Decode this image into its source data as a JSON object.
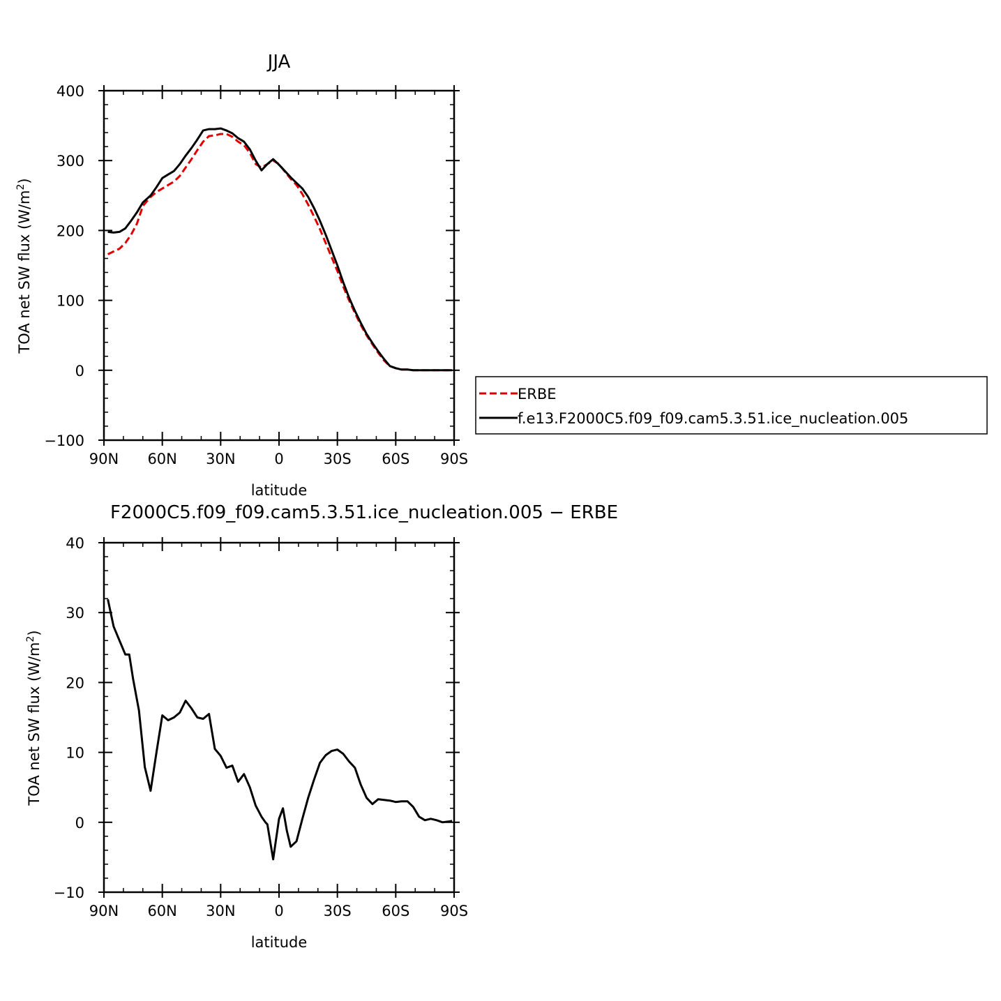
{
  "chart_data": [
    {
      "type": "line",
      "title": "JJA",
      "xlabel": "latitude",
      "ylabel_main": "TOA net SW flux (W/m",
      "ylabel_sup": "2",
      "ylabel_end": ")",
      "xlim": [
        90,
        -90
      ],
      "ylim": [
        -100,
        400
      ],
      "x_ticks": [
        {
          "value": 90,
          "label": "90N"
        },
        {
          "value": 60,
          "label": "60N"
        },
        {
          "value": 30,
          "label": "30N"
        },
        {
          "value": 0,
          "label": "0"
        },
        {
          "value": -30,
          "label": "30S"
        },
        {
          "value": -60,
          "label": "60S"
        },
        {
          "value": -90,
          "label": "90S"
        }
      ],
      "y_ticks": [
        {
          "value": -100,
          "label": "−100"
        },
        {
          "value": 0,
          "label": "0"
        },
        {
          "value": 100,
          "label": "100"
        },
        {
          "value": 200,
          "label": "200"
        },
        {
          "value": 300,
          "label": "300"
        },
        {
          "value": 400,
          "label": "400"
        }
      ],
      "legend": {
        "placement": "right",
        "entries": [
          "ERBE",
          "f.e13.F2000C5.f09_f09.cam5.3.51.ice_nucleation.005"
        ]
      },
      "series": [
        {
          "name": "ERBE",
          "color": "#e00000",
          "dash": "dashed",
          "x": [
            88,
            85,
            82,
            79,
            76,
            73,
            70,
            66,
            63,
            60,
            57,
            54,
            51,
            48,
            45,
            42,
            39,
            36,
            33,
            30,
            27,
            24,
            21,
            18,
            15,
            12,
            9,
            6,
            3,
            0,
            -3,
            -6,
            -9,
            -12,
            -15,
            -18,
            -21,
            -24,
            -27,
            -30,
            -33,
            -36,
            -39,
            -42,
            -45,
            -48,
            -51,
            -54,
            -57,
            -60,
            -63,
            -66,
            -69,
            -72,
            -75,
            -78,
            -81,
            -84,
            -87,
            -89
          ],
          "y": [
            166,
            170,
            174,
            182,
            194,
            210,
            235,
            248,
            255,
            260,
            265,
            270,
            278,
            290,
            302,
            315,
            327,
            335,
            336,
            338,
            338,
            334,
            327,
            322,
            311,
            295,
            290,
            295,
            300,
            295,
            284,
            274,
            265,
            252,
            237,
            220,
            202,
            182,
            162,
            142,
            120,
            100,
            82,
            65,
            50,
            37,
            25,
            14,
            6,
            3,
            1,
            1,
            0,
            0,
            0,
            0,
            0,
            0,
            0,
            0
          ]
        },
        {
          "name": "f.e13.F2000C5.f09_f09.cam5.3.51.ice_nucleation.005",
          "color": "#000000",
          "dash": "solid",
          "x": [
            88,
            85,
            82,
            79,
            76,
            73,
            70,
            66,
            63,
            60,
            57,
            54,
            51,
            48,
            45,
            42,
            39,
            36,
            33,
            30,
            27,
            24,
            21,
            18,
            15,
            12,
            9,
            6,
            3,
            0,
            -3,
            -6,
            -9,
            -12,
            -15,
            -18,
            -21,
            -24,
            -27,
            -30,
            -33,
            -36,
            -39,
            -42,
            -45,
            -48,
            -51,
            -54,
            -57,
            -60,
            -63,
            -66,
            -69,
            -72,
            -75,
            -78,
            -81,
            -84,
            -87,
            -89
          ],
          "y": [
            198,
            197,
            198,
            203,
            214,
            226,
            240,
            250,
            262,
            275,
            280,
            285,
            295,
            307,
            318,
            330,
            343,
            345,
            345,
            346,
            343,
            339,
            332,
            327,
            316,
            300,
            286,
            295,
            302,
            294,
            285,
            276,
            268,
            260,
            248,
            232,
            214,
            194,
            172,
            150,
            126,
            104,
            85,
            68,
            52,
            39,
            27,
            16,
            6,
            3,
            1,
            1,
            0,
            0,
            0,
            0,
            0,
            0,
            0,
            0
          ]
        }
      ]
    },
    {
      "type": "line",
      "title": "F2000C5.f09_f09.cam5.3.51.ice_nucleation.005 − ERBE",
      "xlabel": "latitude",
      "ylabel_main": "TOA net SW flux (W/m",
      "ylabel_sup": "2",
      "ylabel_end": ")",
      "xlim": [
        90,
        -90
      ],
      "ylim": [
        -10,
        40
      ],
      "x_ticks": [
        {
          "value": 90,
          "label": "90N"
        },
        {
          "value": 60,
          "label": "60N"
        },
        {
          "value": 30,
          "label": "30N"
        },
        {
          "value": 0,
          "label": "0"
        },
        {
          "value": -30,
          "label": "30S"
        },
        {
          "value": -60,
          "label": "60S"
        },
        {
          "value": -90,
          "label": "90S"
        }
      ],
      "y_ticks": [
        {
          "value": -10,
          "label": "−10"
        },
        {
          "value": 0,
          "label": "0"
        },
        {
          "value": 10,
          "label": "10"
        },
        {
          "value": 20,
          "label": "20"
        },
        {
          "value": 30,
          "label": "30"
        },
        {
          "value": 40,
          "label": "40"
        }
      ],
      "series": [
        {
          "color": "#000000",
          "dash": "solid",
          "x": [
            88,
            85,
            82,
            79,
            77,
            75,
            72,
            69,
            66,
            63,
            60,
            57,
            54,
            51,
            48,
            45,
            42,
            39,
            36,
            33,
            30,
            27,
            24,
            21,
            18,
            15,
            12,
            9,
            7,
            6,
            3,
            0,
            -2,
            -4,
            -6,
            -9,
            -12,
            -15,
            -18,
            -21,
            -24,
            -27,
            -30,
            -33,
            -36,
            -39,
            -42,
            -45,
            -48,
            -51,
            -54,
            -57,
            -60,
            -63,
            -66,
            -69,
            -72,
            -75,
            -78,
            -81,
            -84,
            -87,
            -89
          ],
          "y": [
            31.9,
            28.0,
            26.0,
            24.0,
            24.0,
            20.5,
            16.0,
            7.9,
            4.5,
            10.0,
            15.3,
            14.6,
            15.0,
            15.7,
            17.4,
            16.3,
            15.0,
            14.8,
            15.5,
            10.5,
            9.5,
            7.8,
            8.1,
            5.8,
            6.9,
            5.0,
            2.4,
            0.8,
            0.0,
            -0.3,
            -5.3,
            0.5,
            2.0,
            -1.2,
            -3.5,
            -2.7,
            0.5,
            3.5,
            6.1,
            8.5,
            9.6,
            10.2,
            10.4,
            9.8,
            8.7,
            7.8,
            5.4,
            3.5,
            2.6,
            3.3,
            3.2,
            3.1,
            2.9,
            3.0,
            3.0,
            2.2,
            0.8,
            0.3,
            0.5,
            0.3,
            0.0,
            0.1,
            0.2
          ]
        }
      ]
    }
  ]
}
